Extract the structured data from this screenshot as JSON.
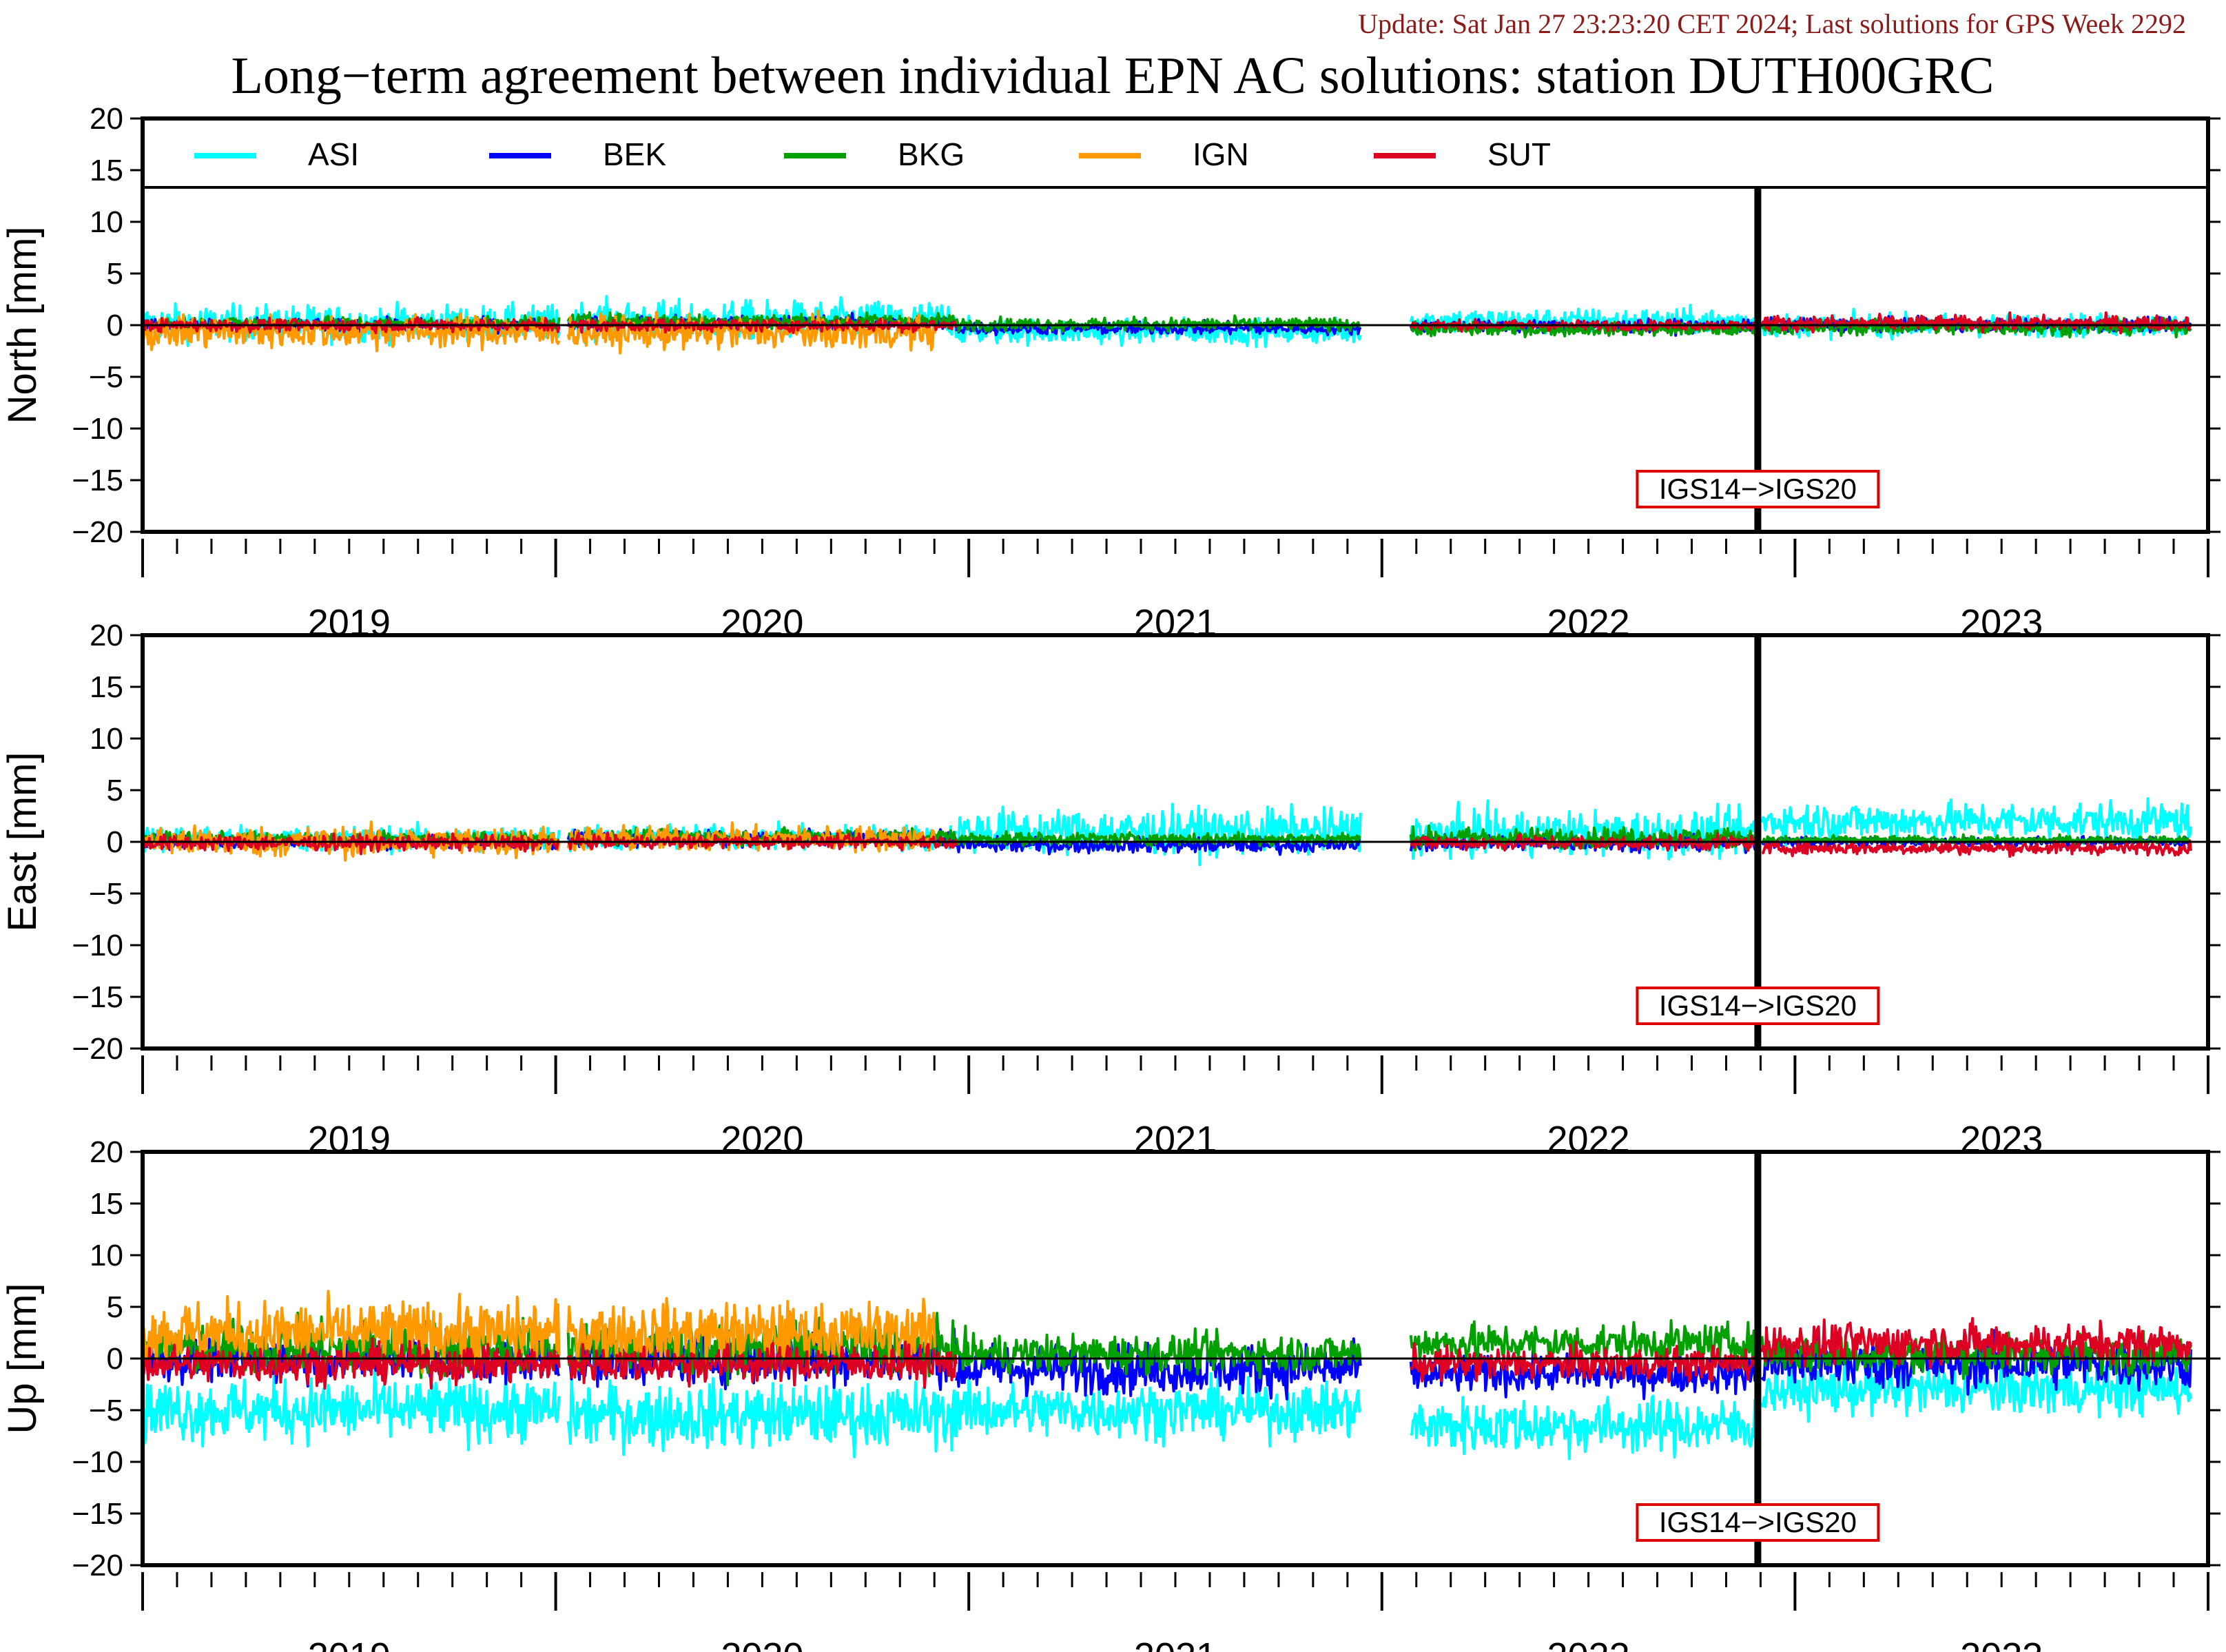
{
  "header": {
    "update_text": "Update: Sat Jan 27 23:23:20 CET 2024; Last solutions for GPS Week 2292",
    "title": "Long−term agreement between individual EPN AC solutions: station DUTH00GRC",
    "update_color": "#8b1a1a"
  },
  "chart_data": {
    "type": "line",
    "title": "Long−term agreement between individual EPN AC solutions: station DUTH00GRC",
    "x_range": [
      2018.5,
      2023.5
    ],
    "x_tick_labels": [
      "2019",
      "2020",
      "2021",
      "2022",
      "2023"
    ],
    "ylim": [
      -20,
      20
    ],
    "y_ticks": [
      20,
      15,
      10,
      5,
      0,
      -5,
      -10,
      -15,
      -20
    ],
    "frame_change": {
      "label": "IGS14−>IGS20",
      "x": 2022.41
    },
    "legend": [
      {
        "name": "ASI",
        "color": "#00ffff"
      },
      {
        "name": "BEK",
        "color": "#0000ff"
      },
      {
        "name": "BKG",
        "color": "#00a000"
      },
      {
        "name": "IGN",
        "color": "#ff9900"
      },
      {
        "name": "SUT",
        "color": "#dd0022"
      }
    ],
    "panels": [
      {
        "ylabel": "North [mm]",
        "series": [
          {
            "name": "ASI",
            "segments": [
              [
                2018.5,
                2019.51,
                0.2,
                1.4
              ],
              [
                2019.53,
                2020.47,
                0.5,
                1.5
              ],
              [
                2020.47,
                2021.45,
                -0.6,
                1.0
              ],
              [
                2021.57,
                2022.41,
                0.4,
                1.0
              ],
              [
                2022.42,
                2023.46,
                0.0,
                0.9
              ]
            ]
          },
          {
            "name": "BEK",
            "segments": [
              [
                2018.5,
                2019.51,
                0.0,
                0.5
              ],
              [
                2019.53,
                2020.47,
                0.2,
                0.6
              ],
              [
                2020.47,
                2021.45,
                -0.3,
                0.5
              ],
              [
                2021.57,
                2022.41,
                -0.1,
                0.5
              ],
              [
                2022.42,
                2023.46,
                0.0,
                0.5
              ]
            ]
          },
          {
            "name": "BKG",
            "segments": [
              [
                2018.5,
                2019.51,
                0.2,
                0.5
              ],
              [
                2019.53,
                2020.47,
                0.4,
                0.6
              ],
              [
                2020.47,
                2021.45,
                0.1,
                0.5
              ],
              [
                2021.57,
                2022.41,
                -0.4,
                0.5
              ],
              [
                2022.42,
                2023.46,
                -0.2,
                0.6
              ]
            ]
          },
          {
            "name": "IGN",
            "segments": [
              [
                2018.5,
                2019.51,
                -0.6,
                1.3
              ],
              [
                2019.53,
                2020.42,
                -0.7,
                1.3
              ]
            ]
          },
          {
            "name": "SUT",
            "segments": [
              [
                2018.5,
                2019.51,
                0.0,
                0.5
              ],
              [
                2019.53,
                2020.47,
                0.0,
                0.5
              ],
              [
                2021.57,
                2022.41,
                0.0,
                0.4
              ],
              [
                2022.42,
                2023.46,
                0.2,
                0.6
              ]
            ]
          }
        ]
      },
      {
        "ylabel": "East [mm]",
        "series": [
          {
            "name": "ASI",
            "segments": [
              [
                2018.5,
                2019.51,
                0.3,
                1.0
              ],
              [
                2019.53,
                2020.47,
                0.4,
                1.0
              ],
              [
                2020.47,
                2021.45,
                1.0,
                1.8
              ],
              [
                2021.57,
                2022.41,
                0.8,
                1.8
              ],
              [
                2022.42,
                2023.46,
                2.0,
                1.5
              ]
            ]
          },
          {
            "name": "BEK",
            "segments": [
              [
                2018.5,
                2019.51,
                0.0,
                0.5
              ],
              [
                2019.53,
                2020.47,
                0.3,
                0.6
              ],
              [
                2020.47,
                2021.45,
                -0.3,
                0.6
              ],
              [
                2021.57,
                2022.41,
                -0.1,
                0.6
              ],
              [
                2022.42,
                2023.46,
                0.0,
                0.4
              ]
            ]
          },
          {
            "name": "BKG",
            "segments": [
              [
                2018.5,
                2019.51,
                0.3,
                0.5
              ],
              [
                2019.53,
                2020.47,
                0.5,
                0.6
              ],
              [
                2020.47,
                2021.45,
                0.3,
                0.5
              ],
              [
                2021.57,
                2022.41,
                0.4,
                0.8
              ],
              [
                2022.42,
                2023.46,
                0.2,
                0.3
              ]
            ]
          },
          {
            "name": "IGN",
            "segments": [
              [
                2018.5,
                2019.51,
                0.0,
                1.2
              ],
              [
                2019.53,
                2020.42,
                0.3,
                1.0
              ]
            ]
          },
          {
            "name": "SUT",
            "segments": [
              [
                2018.5,
                2019.51,
                -0.1,
                0.6
              ],
              [
                2019.53,
                2020.47,
                0.0,
                0.5
              ],
              [
                2021.57,
                2022.41,
                -0.1,
                0.6
              ],
              [
                2022.42,
                2023.46,
                -0.6,
                0.5
              ]
            ]
          }
        ]
      },
      {
        "ylabel": "Up [mm]",
        "series": [
          {
            "name": "ASI",
            "segments": [
              [
                2018.5,
                2019.51,
                -5.0,
                2.5
              ],
              [
                2019.53,
                2020.47,
                -5.5,
                2.6
              ],
              [
                2020.47,
                2021.45,
                -5.0,
                2.2
              ],
              [
                2021.57,
                2022.41,
                -6.5,
                2.2
              ],
              [
                2022.42,
                2023.46,
                -3.0,
                2.0
              ]
            ]
          },
          {
            "name": "BEK",
            "segments": [
              [
                2018.5,
                2019.51,
                0.0,
                1.8
              ],
              [
                2019.53,
                2020.47,
                0.0,
                2.0
              ],
              [
                2020.47,
                2021.45,
                -1.0,
                2.0
              ],
              [
                2021.57,
                2022.41,
                -1.5,
                1.5
              ],
              [
                2022.42,
                2023.46,
                -0.5,
                2.0
              ]
            ]
          },
          {
            "name": "BKG",
            "segments": [
              [
                2018.5,
                2019.51,
                1.0,
                2.2
              ],
              [
                2019.53,
                2020.47,
                1.0,
                2.0
              ],
              [
                2020.47,
                2021.45,
                0.5,
                1.5
              ],
              [
                2021.57,
                2022.41,
                1.5,
                1.5
              ],
              [
                2022.42,
                2023.46,
                0.5,
                1.5
              ]
            ]
          },
          {
            "name": "IGN",
            "segments": [
              [
                2018.5,
                2019.51,
                2.5,
                2.5
              ],
              [
                2019.53,
                2020.42,
                2.5,
                2.4
              ]
            ]
          },
          {
            "name": "SUT",
            "segments": [
              [
                2018.5,
                2019.51,
                -0.5,
                1.5
              ],
              [
                2019.53,
                2020.47,
                -0.5,
                1.5
              ],
              [
                2021.57,
                2022.41,
                -0.5,
                1.3
              ],
              [
                2022.42,
                2023.46,
                1.5,
                1.6
              ]
            ]
          }
        ]
      }
    ]
  }
}
